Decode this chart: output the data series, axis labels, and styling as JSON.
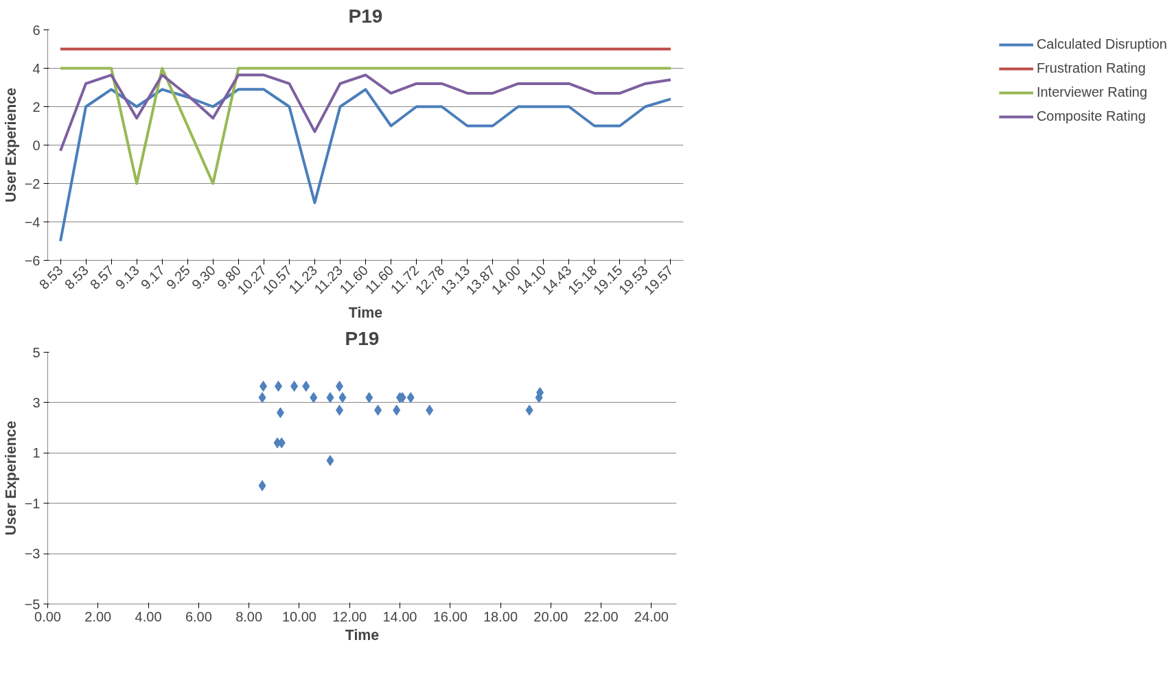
{
  "chart_data": [
    {
      "type": "line",
      "title": "P19",
      "xlabel": "Time",
      "ylabel": "User Experience",
      "categories": [
        "8.53",
        "8.53",
        "8.57",
        "9.13",
        "9.17",
        "9.25",
        "9.30",
        "9.80",
        "10.27",
        "10.57",
        "11.23",
        "11.23",
        "11.60",
        "11.60",
        "11.72",
        "12.78",
        "13.13",
        "13.87",
        "14.00",
        "14.10",
        "14.43",
        "15.18",
        "19.15",
        "19.53",
        "19.57"
      ],
      "series": [
        {
          "name": "Calculated Disruption",
          "color": "#4a7ebb",
          "values": [
            -5,
            2,
            2.9,
            2,
            2.9,
            2.5,
            2,
            2.9,
            2.9,
            2,
            -3,
            2,
            2.9,
            1,
            2,
            2,
            1,
            1,
            2,
            2,
            2,
            1,
            1,
            2,
            2.4
          ]
        },
        {
          "name": "Frustration Rating",
          "color": "#be4b48",
          "values": [
            5,
            5,
            5,
            5,
            5,
            5,
            5,
            5,
            5,
            5,
            5,
            5,
            5,
            5,
            5,
            5,
            5,
            5,
            5,
            5,
            5,
            5,
            5,
            5,
            5
          ]
        },
        {
          "name": "Interviewer Rating",
          "color": "#98b954",
          "values": [
            4,
            4,
            4,
            -2,
            4,
            1,
            -2,
            4,
            4,
            4,
            4,
            4,
            4,
            4,
            4,
            4,
            4,
            4,
            4,
            4,
            4,
            4,
            4,
            4,
            4
          ]
        },
        {
          "name": "Composite Rating",
          "color": "#7d60a0",
          "values": [
            -0.3,
            3.2,
            3.65,
            1.4,
            3.65,
            2.6,
            1.4,
            3.65,
            3.65,
            3.2,
            0.7,
            3.2,
            3.65,
            2.7,
            3.2,
            3.2,
            2.7,
            2.7,
            3.2,
            3.2,
            3.2,
            2.7,
            2.7,
            3.2,
            3.4
          ]
        }
      ],
      "ylim": [
        -6,
        6
      ],
      "yticks": [
        -6,
        -4,
        -2,
        0,
        2,
        4,
        6
      ],
      "grid": "y",
      "legend": "right",
      "marker": "none"
    },
    {
      "type": "scatter",
      "title": "P19",
      "xlabel": "Time",
      "ylabel": "User Experience",
      "marker": "diamond",
      "grid": "y",
      "x": [
        8.53,
        8.53,
        8.57,
        9.13,
        9.17,
        9.25,
        9.3,
        9.8,
        10.27,
        10.57,
        11.23,
        11.23,
        11.6,
        11.6,
        11.72,
        12.78,
        13.13,
        13.87,
        14.0,
        14.1,
        14.43,
        15.18,
        19.15,
        19.53,
        19.57
      ],
      "series": [
        {
          "color": "#4f81bd",
          "values": [
            -0.3,
            3.2,
            3.65,
            1.4,
            3.65,
            2.6,
            1.4,
            3.65,
            3.65,
            3.2,
            0.7,
            3.2,
            3.65,
            2.7,
            3.2,
            3.2,
            2.7,
            2.7,
            3.2,
            3.2,
            3.2,
            2.7,
            2.7,
            3.2,
            3.4
          ]
        }
      ],
      "xlim": [
        0,
        25
      ],
      "xticks": [
        {
          "value": 0,
          "label": "0.00"
        },
        {
          "value": 2,
          "label": "2.00"
        },
        {
          "value": 4,
          "label": "4.00"
        },
        {
          "value": 6,
          "label": "6.00"
        },
        {
          "value": 8,
          "label": "8.00"
        },
        {
          "value": 10,
          "label": "10.00"
        },
        {
          "value": 12,
          "label": "12.00"
        },
        {
          "value": 14,
          "label": "14.00"
        },
        {
          "value": 16,
          "label": "16.00"
        },
        {
          "value": 18,
          "label": "18.00"
        },
        {
          "value": 20,
          "label": "20.00"
        },
        {
          "value": 22,
          "label": "22.00"
        },
        {
          "value": 24,
          "label": "24.00"
        }
      ],
      "ylim": [
        -5,
        5
      ],
      "yticks": [
        -5,
        -3,
        -1,
        1,
        3,
        5
      ]
    }
  ]
}
